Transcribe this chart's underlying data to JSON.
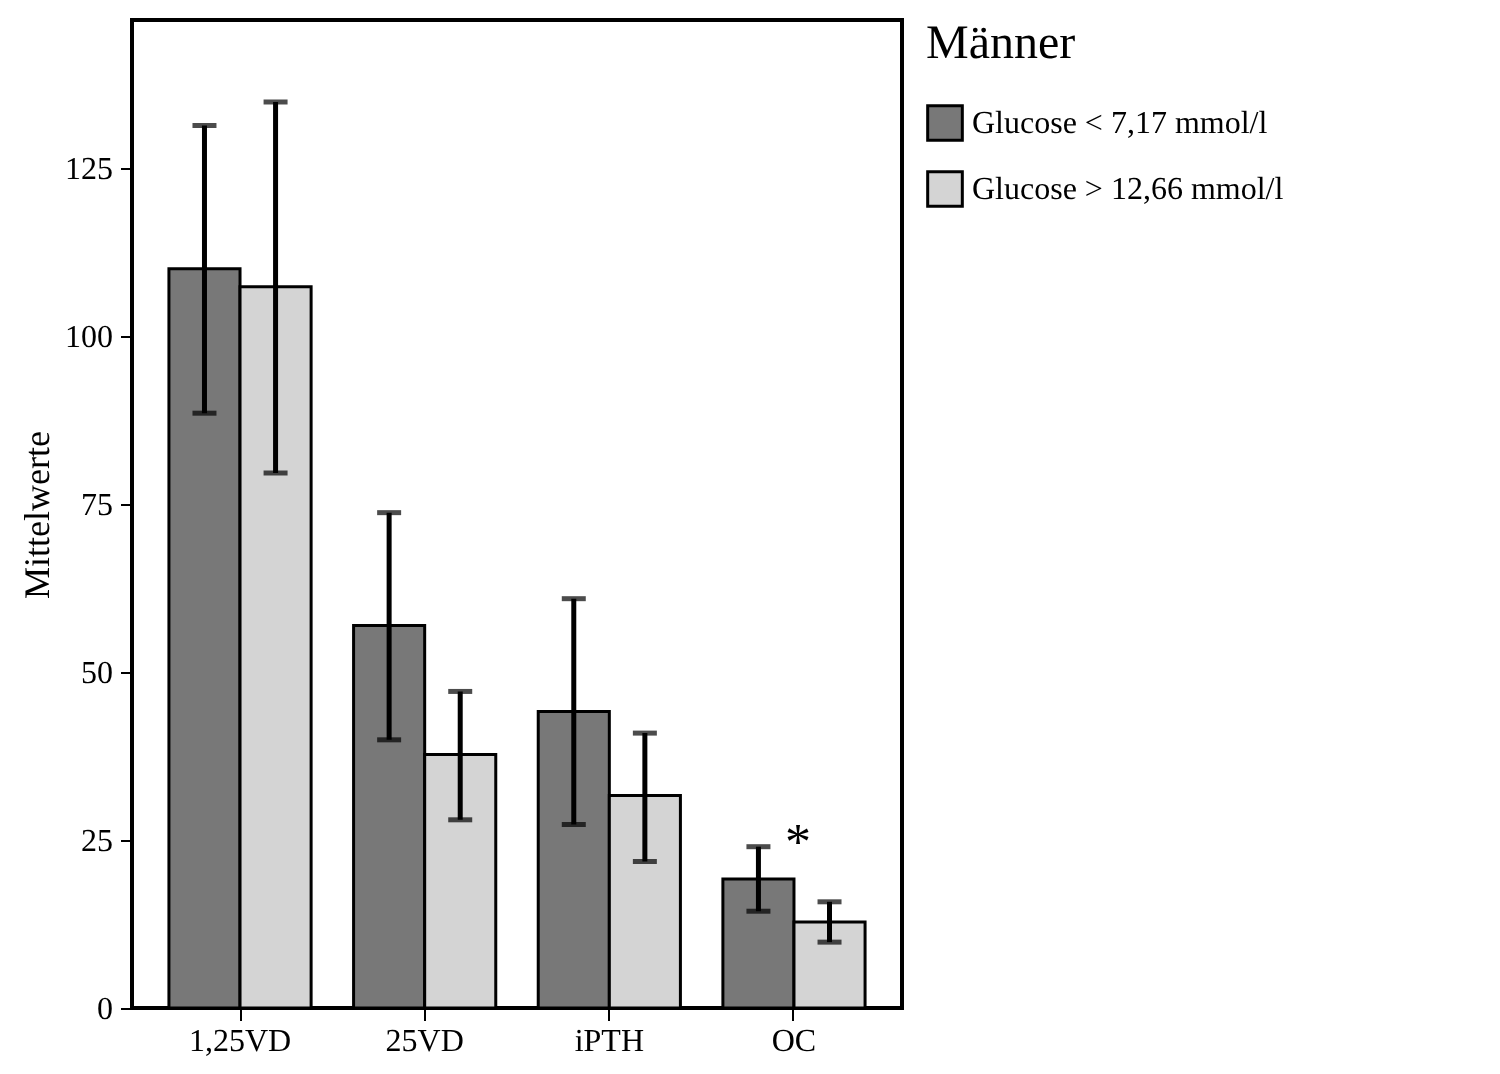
{
  "chart_data": {
    "type": "bar",
    "ylabel": "Mittelwerte",
    "legend_title": "Männer",
    "categories": [
      "1,25VD",
      "25VD",
      "iPTH",
      "OC"
    ],
    "series": [
      {
        "name": "Glucose < 7,17 mmol/l",
        "color": "#787878",
        "values": [
          110,
          56.9,
          44.1,
          19.2
        ],
        "errors": [
          [
            88.5,
            131.3
          ],
          [
            39.9,
            73.7
          ],
          [
            27.3,
            60.9
          ],
          [
            14.4,
            24.0
          ]
        ]
      },
      {
        "name": "Glucose > 12,66 mmol/l",
        "color": "#d4d4d4",
        "values": [
          107.3,
          37.7,
          31.6,
          12.8
        ],
        "errors": [
          [
            79.6,
            134.8
          ],
          [
            28.0,
            47.1
          ],
          [
            21.8,
            40.9
          ],
          [
            9.8,
            15.8
          ]
        ]
      }
    ],
    "annotations": [
      "*"
    ],
    "ylim": [
      0,
      147
    ],
    "yticks": [
      0,
      25,
      50,
      75,
      100,
      125
    ],
    "grid": false,
    "legend": "top right"
  }
}
